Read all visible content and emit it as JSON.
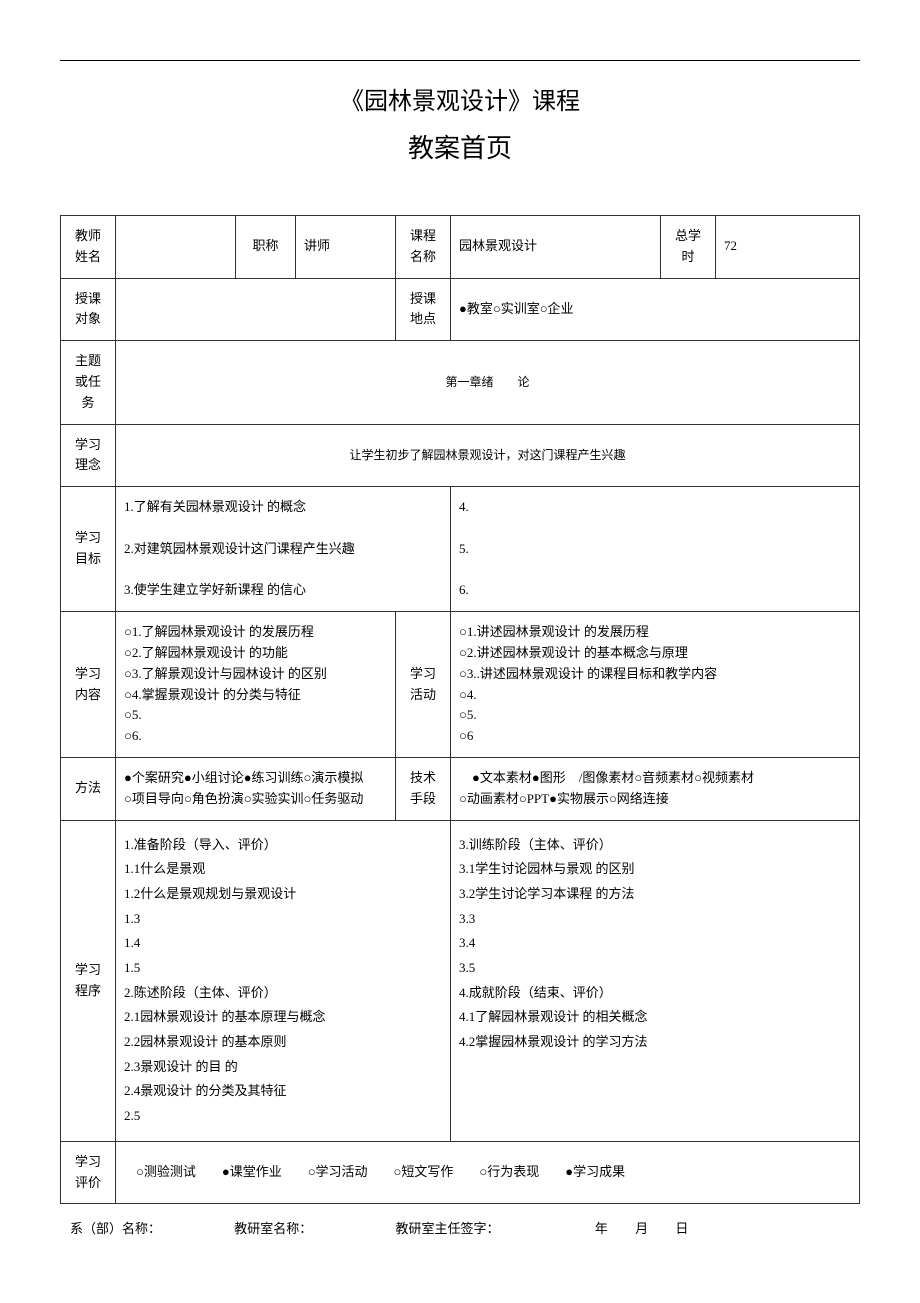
{
  "header": {
    "course_title_line": "《园林景观设计》课程",
    "subtitle": "教案首页"
  },
  "row1": {
    "teacher_label": "教师\n姓名",
    "teacher_value": "",
    "role_label": "职称",
    "role_value": "讲师",
    "course_label": "课程\n名称",
    "course_value": "园林景观设计",
    "hours_label": "总学时",
    "hours_value": "72"
  },
  "row2": {
    "audience_label": "授课\n对象",
    "audience_value": "",
    "location_label": "授课\n地点",
    "location_value": "●教室○实训室○企业"
  },
  "row3": {
    "topic_label": "主题\n或任务",
    "topic_value": "第一章绪　　论"
  },
  "row4": {
    "concept_label": "学习\n理念",
    "concept_value": "让学生初步了解园林景观设计，对这门课程产生兴趣"
  },
  "row5": {
    "goals_label": "学习\n目标",
    "goals_left": "1.了解有关园林景观设计 的概念\n\n2.对建筑园林景观设计这门课程产生兴趣\n\n3.使学生建立学好新课程 的信心",
    "goals_right": "4.\n\n5.\n\n6."
  },
  "row6": {
    "content_label": "学习\n内容",
    "content_left": "○1.了解园林景观设计 的发展历程\n○2.了解园林景观设计 的功能\n○3.了解景观设计与园林设计 的区别\n○4.掌握景观设计 的分类与特征\n○5.\n○6.",
    "activity_label": "学习\n活动",
    "activity_right": "○1.讲述园林景观设计 的发展历程\n○2.讲述园林景观设计 的基本概念与原理\n○3..讲述园林景观设计 的课程目标和教学内容\n○4.\n○5.\n○6"
  },
  "row7": {
    "method_label": "方法",
    "method_value": "●个案研究●小组讨论●练习训练○演示模拟\n○项目导向○角色扮演○实验实训○任务驱动",
    "tech_label": "技术\n手段",
    "tech_value": "　●文本素材●图形　/图像素材○音频素材○视频素材\n○动画素材○PPT●实物展示○网络连接"
  },
  "row8": {
    "process_label": "学习\n程序",
    "process_left": "1.准备阶段（导入、评价）\n1.1什么是景观\n1.2什么是景观规划与景观设计\n1.3\n1.4\n1.5\n2.陈述阶段（主体、评价）\n2.1园林景观设计 的基本原理与概念\n2.2园林景观设计 的基本原则\n2.3景观设计 的目 的\n2.4景观设计 的分类及其特征\n2.5",
    "process_right": "3.训练阶段（主体、评价）\n3.1学生讨论园林与景观 的区别\n3.2学生讨论学习本课程 的方法\n3.3\n3.4\n 3.5\n4.成就阶段（结束、评价）\n4.1了解园林景观设计 的相关概念\n4.2掌握园林景观设计 的学习方法"
  },
  "row9": {
    "eval_label": "学习\n评价",
    "eval_value": "○测验测试　　●课堂作业　　○学习活动　　○短文写作　　○行为表现　　●学习成果"
  },
  "footer": {
    "dept_label": "系（部）名称：",
    "office_label": "教研室名称：",
    "sign_label": "教研室主任签字：",
    "year": "年",
    "month": "月",
    "day": "日"
  },
  "colors": {
    "text": "#000000",
    "border": "#333333",
    "background": "#ffffff"
  },
  "typography": {
    "title_fontsize": 24,
    "subtitle_fontsize": 26,
    "body_fontsize": 13,
    "font_family": "SimSun"
  }
}
